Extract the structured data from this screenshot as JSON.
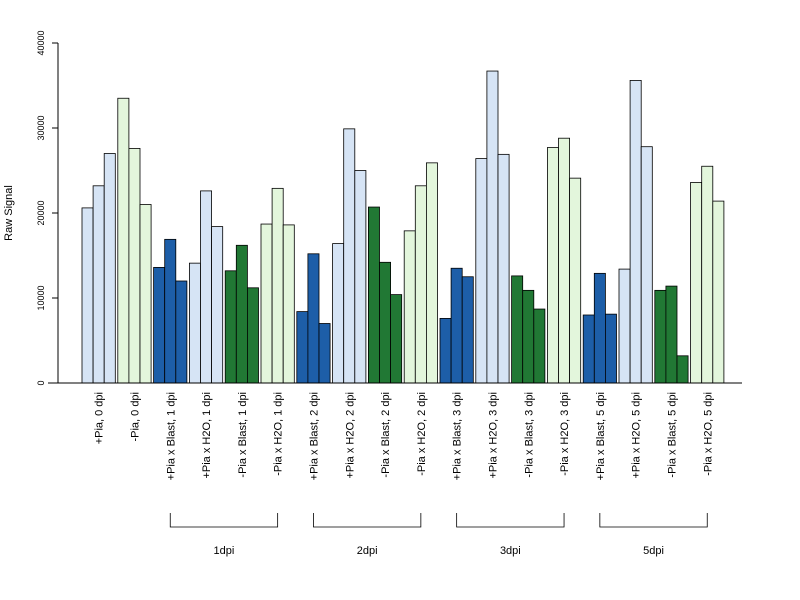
{
  "chart_data": {
    "type": "bar",
    "ylabel": "Raw Signal",
    "ylim": [
      0,
      40000
    ],
    "yticks": [
      0,
      10000,
      20000,
      30000,
      40000
    ],
    "ytick_labels": [
      "0",
      "10000",
      "20000",
      "30000",
      "40000"
    ],
    "colors": {
      "light_blue": "#d6e4f5",
      "light_green": "#e3f6dc",
      "dark_blue": "#1d5ea8",
      "dark_green": "#217834",
      "outline": "#000000"
    },
    "categories": [
      "+Pia, 0 dpi",
      "-Pia, 0 dpi",
      "+Pia x Blast, 1 dpi",
      "+Pia x H2O, 1 dpi",
      "-Pia x Blast, 1 dpi",
      "-Pia x H2O, 1 dpi",
      "+Pia x Blast, 2 dpi",
      "+Pia x H2O, 2 dpi",
      "-Pia x Blast, 2 dpi",
      "-Pia x H2O, 2 dpi",
      "+Pia x Blast, 3 dpi",
      "+Pia x H2O, 3 dpi",
      "-Pia x Blast, 3 dpi",
      "-Pia x H2O, 3 dpi",
      "+Pia x Blast, 5 dpi",
      "+Pia x H2O, 5 dpi",
      "-Pia x Blast, 5 dpi",
      "-Pia x H2O, 5 dpi"
    ],
    "group_colors": [
      "light_blue",
      "light_green",
      "dark_blue",
      "light_blue",
      "dark_green",
      "light_green",
      "dark_blue",
      "light_blue",
      "dark_green",
      "light_green",
      "dark_blue",
      "light_blue",
      "dark_green",
      "light_green",
      "dark_blue",
      "light_blue",
      "dark_green",
      "light_green"
    ],
    "replicate_values": [
      [
        20600,
        23200,
        27000
      ],
      [
        33500,
        27600,
        21000
      ],
      [
        13600,
        16900,
        12000
      ],
      [
        14100,
        22600,
        18400
      ],
      [
        13200,
        16200,
        11200
      ],
      [
        18700,
        22900,
        18600
      ],
      [
        8400,
        15200,
        7000
      ],
      [
        16400,
        29900,
        25000
      ],
      [
        20700,
        14200,
        10400
      ],
      [
        17900,
        23200,
        25900
      ],
      [
        7600,
        13500,
        12500
      ],
      [
        26400,
        36700,
        26900
      ],
      [
        12600,
        10900,
        8700
      ],
      [
        27700,
        28800,
        24100
      ],
      [
        8000,
        12900,
        8100
      ],
      [
        13400,
        35600,
        27800
      ],
      [
        10900,
        11400,
        3200
      ],
      [
        23600,
        25500,
        21400
      ]
    ],
    "brackets": [
      {
        "label": "1dpi",
        "from": 2,
        "to": 5
      },
      {
        "label": "2dpi",
        "from": 6,
        "to": 9
      },
      {
        "label": "3dpi",
        "from": 10,
        "to": 13
      },
      {
        "label": "5dpi",
        "from": 14,
        "to": 17
      }
    ]
  }
}
